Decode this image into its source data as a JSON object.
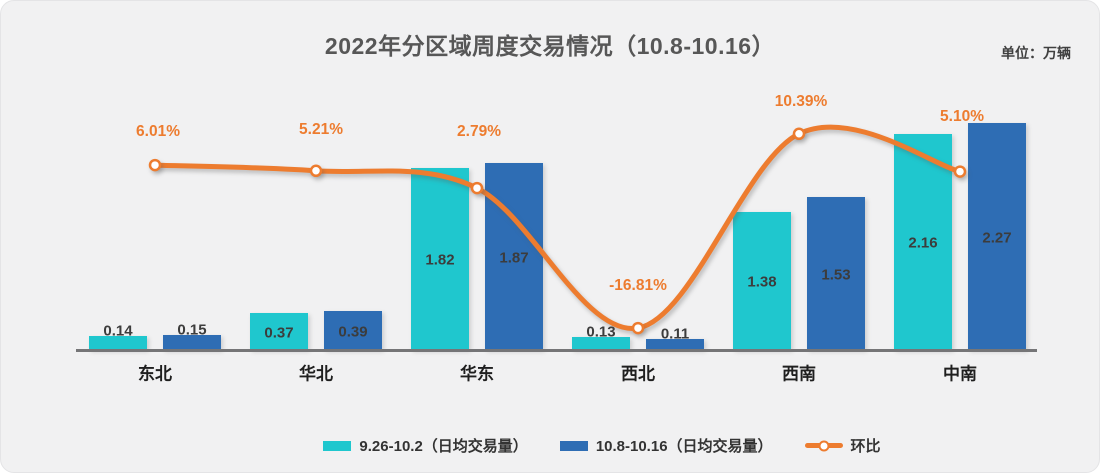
{
  "header": {
    "title": "2022年分区域周度交易情况（10.8-10.16）",
    "unit_label": "单位：万辆"
  },
  "chart_data": {
    "type": "bar",
    "subtype": "grouped-bar-with-line",
    "title": "2022年分区域周度交易情况（10.8-10.16）",
    "unit": "万辆",
    "categories": [
      "东北",
      "华北",
      "华东",
      "西北",
      "西南",
      "中南"
    ],
    "series": [
      {
        "name": "9.26-10.2（日均交易量）",
        "type": "bar",
        "color": "#1FC7CE",
        "values": [
          0.14,
          0.37,
          1.82,
          0.13,
          1.38,
          2.16
        ]
      },
      {
        "name": "10.8-10.16（日均交易量）",
        "type": "bar",
        "color": "#2E6DB4",
        "values": [
          0.15,
          0.39,
          1.87,
          0.11,
          1.53,
          2.27
        ]
      },
      {
        "name": "环比",
        "type": "line",
        "color": "#ED7C2F",
        "values_pct": [
          6.01,
          5.21,
          2.79,
          -16.81,
          10.39,
          5.1
        ],
        "point_labels": [
          "6.01%",
          "5.21%",
          "2.79%",
          "-16.81%",
          "10.39%",
          "5.10%"
        ]
      }
    ],
    "xlabel": "",
    "ylabel": "",
    "grid": false,
    "legend_position": "bottom",
    "value_label_decimals": 2
  }
}
